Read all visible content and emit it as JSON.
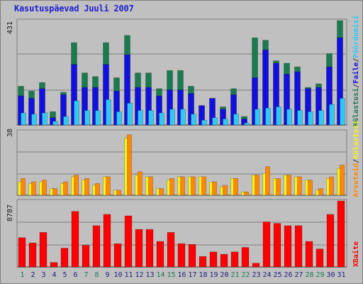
{
  "title": "Kasutuspäevad Juuli 2007",
  "colors": {
    "background": "#c0c0c0",
    "title": "#2020d0",
    "kulastusi": "#1a7a50",
    "failid": "#1010e0",
    "poordumisi": "#30c8f8",
    "arvuteid": "#ff8800",
    "kulastusi_yellow": "#f8f020",
    "xbaite": "#ff0000",
    "weekend_label": "#1a7a50",
    "weekday_label": "#202080"
  },
  "legends": {
    "top": [
      "Külastusi",
      "/",
      "Faile",
      "/",
      "Pöördumisi"
    ],
    "middle": [
      "Arvuteid",
      "/",
      "Külastusi"
    ],
    "bottom": [
      "XBaite"
    ]
  },
  "y_max_labels": {
    "top": "431",
    "middle": "38",
    "bottom": "8787"
  },
  "chart_data": [
    {
      "type": "bar",
      "title": "Kasutuspäevad Juuli 2007",
      "categories": [
        "1",
        "2",
        "3",
        "4",
        "5",
        "6",
        "7",
        "8",
        "9",
        "10",
        "11",
        "12",
        "13",
        "14",
        "15",
        "16",
        "17",
        "18",
        "19",
        "20",
        "21",
        "22",
        "23",
        "24",
        "25",
        "26",
        "27",
        "28",
        "29",
        "30",
        "31"
      ],
      "weekend_days": [
        "1",
        "7",
        "8",
        "14",
        "15",
        "21",
        "22",
        "28",
        "29"
      ],
      "ylim": [
        0,
        431
      ],
      "series": [
        {
          "name": "Külastusi",
          "values": [
            160,
            140,
            175,
            55,
            135,
            340,
            215,
            200,
            340,
            195,
            370,
            215,
            215,
            150,
            225,
            225,
            160,
            80,
            110,
            75,
            150,
            35,
            360,
            350,
            265,
            255,
            240,
            155,
            170,
            295,
            431
          ]
        },
        {
          "name": "Faile",
          "values": [
            120,
            110,
            150,
            30,
            125,
            250,
            155,
            155,
            250,
            140,
            290,
            155,
            155,
            120,
            145,
            145,
            130,
            80,
            110,
            65,
            125,
            25,
            195,
            310,
            255,
            210,
            220,
            150,
            155,
            240,
            360
          ]
        },
        {
          "name": "Pöördumisi",
          "values": [
            50,
            45,
            50,
            15,
            35,
            100,
            60,
            60,
            105,
            55,
            90,
            60,
            60,
            50,
            65,
            65,
            45,
            20,
            30,
            25,
            45,
            8,
            65,
            70,
            75,
            65,
            60,
            55,
            60,
            85,
            110
          ]
        }
      ]
    },
    {
      "type": "bar",
      "ylim": [
        0,
        38
      ],
      "series": [
        {
          "name": "Arvuteid",
          "values": [
            10,
            8,
            9,
            4,
            8,
            12,
            10,
            7,
            11,
            3,
            36,
            14,
            11,
            4,
            10,
            11,
            11,
            11,
            8,
            6,
            10,
            2,
            12,
            17,
            10,
            12,
            11,
            9,
            4,
            11,
            18
          ]
        },
        {
          "name": "Külastusi",
          "values": [
            8,
            7,
            8,
            4,
            7,
            11,
            9,
            6,
            11,
            3,
            34,
            12,
            11,
            4,
            9,
            11,
            11,
            11,
            8,
            5,
            10,
            2,
            12,
            13,
            10,
            12,
            11,
            9,
            3,
            10,
            16
          ]
        }
      ]
    },
    {
      "type": "bar",
      "ylim": [
        0,
        8787
      ],
      "series": [
        {
          "name": "XBaite",
          "values": [
            3900,
            3200,
            4600,
            600,
            2500,
            7400,
            2900,
            5500,
            7000,
            3100,
            6800,
            5000,
            5000,
            3400,
            4600,
            3100,
            3000,
            1400,
            2000,
            1700,
            2000,
            2600,
            500,
            6000,
            5800,
            5500,
            5500,
            3400,
            2400,
            7000,
            8787
          ]
        }
      ]
    }
  ]
}
